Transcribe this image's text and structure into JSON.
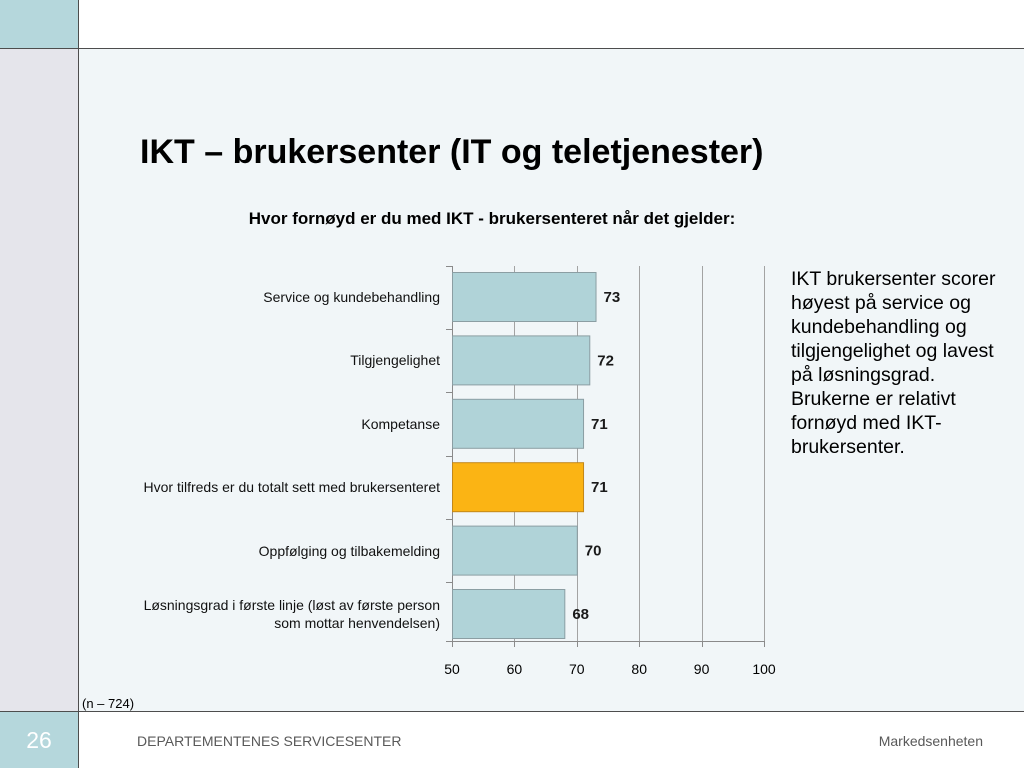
{
  "slide": {
    "title": "IKT – brukersenter (IT og teletjenester)",
    "commentary": "IKT brukersenter scorer\nhøyest på service og\nkundebehandling og\ntilgjengelighet og lavest\npå løsningsgrad.\nBrukerne er relativt\nfornøyd med IKT-\nbrukersenter.",
    "sample_note": "(n – 724)",
    "page_number": "26",
    "footer_org": "DEPARTEMENTENES SERVICESENTER",
    "footer_unit": "Markedsenheten"
  },
  "colors": {
    "accent": "#b5d7dc",
    "sidebar": "#e5e5eb",
    "content_background": "#f1f6f8",
    "rule": "#4d4d4d",
    "bar_fill": "#b0d3d8",
    "bar_stroke": "#8b9ea3",
    "bar_highlight": "#fbb414",
    "bar_highlight_stroke": "#c2871a",
    "grid": "#a3a3a3",
    "axis": "#8a8a8a"
  },
  "chart_data": {
    "type": "bar",
    "orientation": "horizontal",
    "title": "Hvor fornøyd er du med IKT - brukersenteret når det gjelder:",
    "categories": [
      "Service og kundebehandling",
      "Tilgjengelighet",
      "Kompetanse",
      "Hvor tilfreds er du totalt sett med brukersenteret",
      "Oppfølging og tilbakemelding",
      "Løsningsgrad i første linje (løst av første person\nsom mottar henvendelsen)"
    ],
    "values": [
      73,
      72,
      71,
      71,
      70,
      68
    ],
    "highlight_index": 3,
    "xlim": [
      50,
      100
    ],
    "xticks": [
      50,
      60,
      70,
      80,
      90,
      100
    ],
    "xlabel": "",
    "ylabel": "",
    "grid": true,
    "data_labels": true
  }
}
